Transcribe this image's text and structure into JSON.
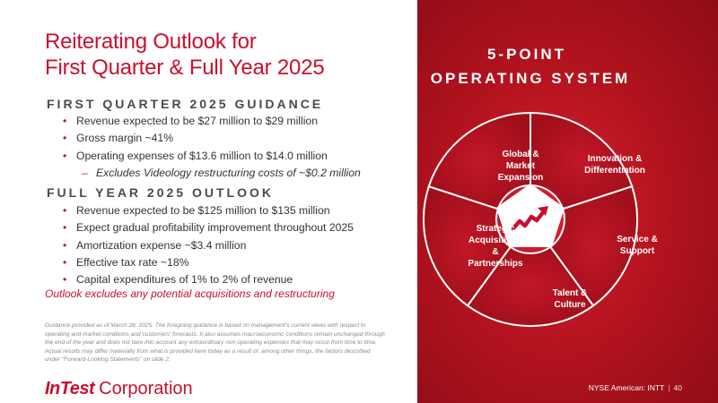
{
  "slide": {
    "title_line1": "Reiterating Outlook for",
    "title_line2": "First Quarter & Full Year 2025",
    "q1": {
      "heading": "FIRST QUARTER 2025 GUIDANCE",
      "items": [
        "Revenue expected to be $27 million to $29 million",
        "Gross margin ~41%",
        "Operating expenses of $13.6 million to $14.0 million"
      ],
      "subitem": "Excludes Videology restructuring costs of ~$0.2 million"
    },
    "fy": {
      "heading": "FULL YEAR 2025 OUTLOOK",
      "items": [
        "Revenue expected to be $125 million to $135 million",
        "Expect gradual profitability improvement throughout 2025",
        "Amortization expense ~$3.4 million",
        "Effective tax rate ~18%",
        "Capital expenditures of 1% to 2% of revenue"
      ]
    },
    "note": "Outlook excludes any potential acquisitions and restructuring",
    "disclaimer": "Guidance provided as of March 26, 2025. The foregoing guidance is based on management's current views with respect to operating and market conditions and customers' forecasts. It also assumes macroeconomic conditions remain unchanged through the end of the year and does not take into account any extraordinary non-operating expenses that may occur from time to time. Actual results may differ materially from what is provided here today as a result of, among other things, the factors described under \"Forward-Looking Statements\" on slide 2.",
    "logo": {
      "brand": "InTest",
      "corp": "Corporation"
    }
  },
  "system": {
    "title_line1": "5-POINT",
    "title_line2": "OPERATING SYSTEM",
    "segments": {
      "global": [
        "Global &",
        "Market",
        "Expansion"
      ],
      "innovation": [
        "Innovation &",
        "Differentiation"
      ],
      "service": [
        "Service &",
        "Support"
      ],
      "talent": [
        "Talent &",
        "Culture"
      ],
      "strategic": [
        "Strategic",
        "Acquisitions",
        "&",
        "Partnerships"
      ]
    },
    "center_icon": "growth-arrow-icon"
  },
  "footer": {
    "exchange": "NYSE American: INTT",
    "page": "40"
  },
  "colors": {
    "brand_red": "#c8102e",
    "panel_red": "#b5141f",
    "text_gray": "#333333"
  }
}
